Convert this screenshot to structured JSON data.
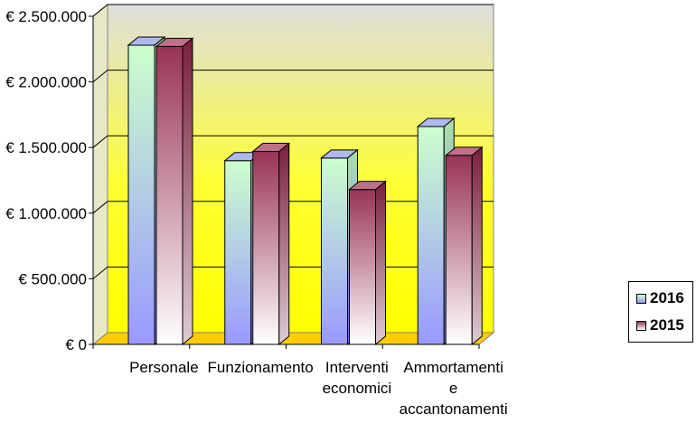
{
  "chart_data": {
    "type": "bar",
    "title": "",
    "xlabel": "",
    "ylabel": "",
    "ylim": [
      0,
      2500000
    ],
    "yticks": [
      0,
      500000,
      1000000,
      1500000,
      2000000,
      2500000
    ],
    "ytick_labels": [
      "€ 0",
      "€ 500.000",
      "€ 1.000.000",
      "€ 1.500.000",
      "€ 2.000.000",
      "€ 2.500.000"
    ],
    "categories": [
      "Personale",
      "Funzionamento",
      "Interventi economici",
      "Ammortamenti e accantonamenti"
    ],
    "category_lines": [
      [
        "Personale"
      ],
      [
        "Funzionamento"
      ],
      [
        "Interventi",
        "economici"
      ],
      [
        "Ammortamenti",
        "e",
        "accantonamenti"
      ]
    ],
    "series": [
      {
        "name": "2016",
        "values": [
          2280000,
          1400000,
          1420000,
          1660000
        ],
        "color": "#c8f0c8",
        "gradient_to": "#9999ee"
      },
      {
        "name": "2015",
        "values": [
          2270000,
          1470000,
          1180000,
          1440000
        ],
        "color": "#8b1a3a",
        "gradient_to": "#ffffff"
      }
    ],
    "grid": true,
    "legend_position": "right",
    "background": "#ffff66",
    "floor_color": "#ffcc00"
  }
}
